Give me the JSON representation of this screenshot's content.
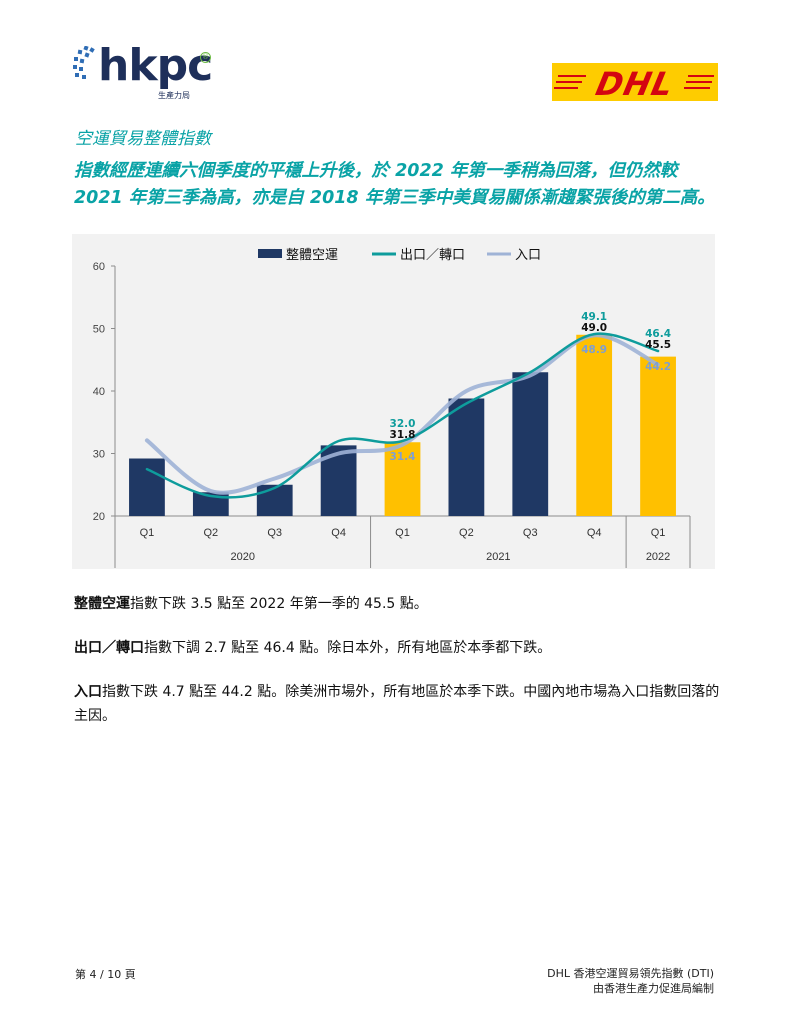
{
  "header": {
    "hkpc_logo": {
      "wordmark": "hkpc",
      "subtitle": "生產力局",
      "registered": "®"
    },
    "dhl_logo": {
      "wordmark": "DHL"
    }
  },
  "section_title": "空運貿易整體指數",
  "headline": "指數經歷連續六個季度的平穩上升後，於 2022 年第一季稍為回落，但仍然較 2021 年第三季為高，亦是自 2018 年第三季中美貿易關係漸趨緊張後的第二高。",
  "colors": {
    "bar_navy": "#1f3864",
    "bar_highlight": "#ffc000",
    "export_line": "#0e9c9c",
    "import_line": "#9fb3d6",
    "teal_heading": "#0aa3a6"
  },
  "chart_data": {
    "type": "bar",
    "legend": [
      "整體空運",
      "出口／轉口",
      "入口"
    ],
    "legend_position": "top",
    "categories": [
      "Q1",
      "Q2",
      "Q3",
      "Q4",
      "Q1",
      "Q2",
      "Q3",
      "Q4",
      "Q1"
    ],
    "years": [
      {
        "label": "2020",
        "span": 4
      },
      {
        "label": "2021",
        "span": 4
      },
      {
        "label": "2022",
        "span": 1
      }
    ],
    "ylim": [
      20,
      60
    ],
    "yticks": [
      20,
      30,
      40,
      50,
      60
    ],
    "grid": false,
    "highlight_indices": [
      4,
      7,
      8
    ],
    "series": [
      {
        "name": "整體空運",
        "kind": "bar",
        "values": [
          29.2,
          23.8,
          25.0,
          31.3,
          31.8,
          38.8,
          43.0,
          49.0,
          45.5
        ]
      },
      {
        "name": "出口／轉口",
        "kind": "line",
        "values": [
          27.5,
          23.2,
          24.5,
          32.0,
          32.0,
          38.0,
          43.0,
          49.1,
          46.4
        ]
      },
      {
        "name": "入口",
        "kind": "line",
        "values": [
          32.1,
          24.0,
          26.0,
          30.0,
          31.4,
          40.0,
          42.5,
          48.9,
          44.2
        ]
      }
    ],
    "data_labels": [
      {
        "index": 4,
        "overall": "31.8",
        "export": "32.0",
        "import": "31.4"
      },
      {
        "index": 7,
        "overall": "49.0",
        "export": "49.1",
        "import": "48.9"
      },
      {
        "index": 8,
        "overall": "45.5",
        "export": "46.4",
        "import": "44.2"
      }
    ]
  },
  "paragraphs": [
    {
      "bold": "整體空運",
      "text": "指數下跌 3.5 點至 2022 年第一季的 45.5 點。"
    },
    {
      "bold": "出口／轉口",
      "text": "指數下調 2.7 點至 46.4 點。除日本外，所有地區於本季都下跌。"
    },
    {
      "bold": "入口",
      "text": "指數下跌 4.7 點至 44.2 點。除美洲市場外，所有地區於本季下跌。中國內地市場為入口指數回落的主因。"
    }
  ],
  "footer": {
    "page": "第 4 / 10 頁",
    "title": "DHL 香港空運貿易領先指數 (DTI)",
    "compiled_by": "由香港生產力促進局編制"
  }
}
